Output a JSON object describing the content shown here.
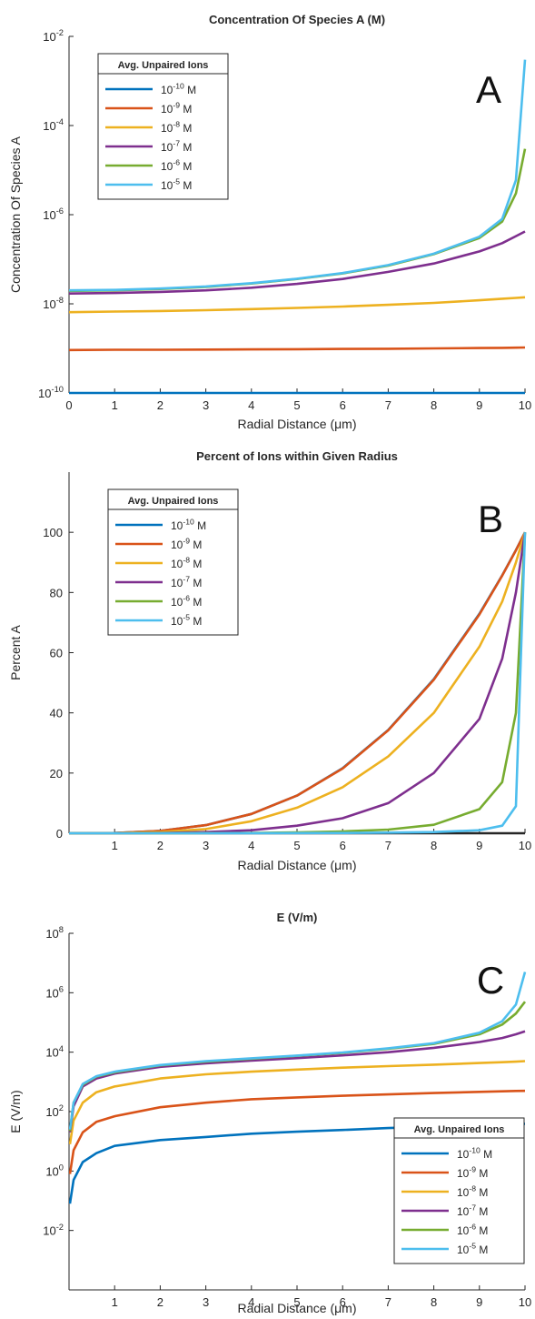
{
  "colors": {
    "series": [
      "#0072BD",
      "#D95319",
      "#EDB120",
      "#7E2F8E",
      "#77AC30",
      "#4DBEEE"
    ],
    "axis": "#262626",
    "text": "#262626"
  },
  "legend": {
    "title": "Avg. Unpaired Ions",
    "entries": [
      {
        "base": "10",
        "exp": "-10",
        "unit": " M"
      },
      {
        "base": "10",
        "exp": "-9",
        "unit": " M"
      },
      {
        "base": "10",
        "exp": "-8",
        "unit": " M"
      },
      {
        "base": "10",
        "exp": "-7",
        "unit": " M"
      },
      {
        "base": "10",
        "exp": "-6",
        "unit": " M"
      },
      {
        "base": "10",
        "exp": "-5",
        "unit": " M"
      }
    ]
  },
  "chart_data": [
    {
      "type": "line",
      "panel_letter": "A",
      "title": "Concentration Of Species A (M)",
      "xlabel": "Radial Distance (μm)",
      "ylabel": "Concentration Of Species A",
      "xlim": [
        0,
        10
      ],
      "ylim": [
        1e-10,
        0.01
      ],
      "yscale": "log",
      "grid": false,
      "legend_position": "top-left",
      "xticks": [
        "0",
        "1",
        "2",
        "3",
        "4",
        "5",
        "6",
        "7",
        "8",
        "9",
        "10"
      ],
      "yticks": [
        {
          "base": "10",
          "exp": "-2"
        },
        {
          "base": "10",
          "exp": "-4"
        },
        {
          "base": "10",
          "exp": "-6"
        },
        {
          "base": "10",
          "exp": "-8"
        },
        {
          "base": "10",
          "exp": "-10"
        }
      ],
      "x": [
        0,
        1,
        2,
        3,
        4,
        5,
        6,
        7,
        8,
        9,
        9.5,
        9.8,
        10
      ],
      "series": [
        {
          "values": [
            1e-10,
            1e-10,
            1e-10,
            1e-10,
            1e-10,
            1e-10,
            1e-10,
            1e-10,
            1e-10,
            1e-10,
            1e-10,
            1e-10,
            1e-10
          ]
        },
        {
          "values": [
            9.2e-10,
            9.3e-10,
            9.3e-10,
            9.4e-10,
            9.5e-10,
            9.6e-10,
            9.7e-10,
            9.8e-10,
            1e-09,
            1.02e-09,
            1.03e-09,
            1.04e-09,
            1.05e-09
          ]
        },
        {
          "values": [
            6.5e-09,
            6.7e-09,
            6.9e-09,
            7.2e-09,
            7.6e-09,
            8.1e-09,
            8.7e-09,
            9.5e-09,
            1.05e-08,
            1.2e-08,
            1.3e-08,
            1.36e-08,
            1.4e-08
          ]
        },
        {
          "values": [
            1.7e-08,
            1.75e-08,
            1.85e-08,
            2e-08,
            2.3e-08,
            2.8e-08,
            3.6e-08,
            5.2e-08,
            8e-08,
            1.5e-07,
            2.3e-07,
            3.3e-07,
            4.2e-07
          ]
        },
        {
          "values": [
            1.95e-08,
            2e-08,
            2.15e-08,
            2.4e-08,
            2.85e-08,
            3.6e-08,
            4.8e-08,
            7.2e-08,
            1.3e-07,
            3e-07,
            7e-07,
            3e-06,
            3e-05
          ]
        },
        {
          "values": [
            2e-08,
            2.05e-08,
            2.2e-08,
            2.45e-08,
            2.9e-08,
            3.65e-08,
            4.9e-08,
            7.4e-08,
            1.33e-07,
            3.2e-07,
            8e-07,
            6e-06,
            0.003
          ]
        }
      ]
    },
    {
      "type": "line",
      "panel_letter": "B",
      "title": "Percent of Ions within Given Radius",
      "xlabel": "Radial Distance (μm)",
      "ylabel": "Percent A",
      "xlim": [
        0,
        10
      ],
      "ylim": [
        0,
        120
      ],
      "yscale": "linear",
      "grid": false,
      "legend_position": "top-left",
      "xticks": [
        "1",
        "2",
        "3",
        "4",
        "5",
        "6",
        "7",
        "8",
        "9",
        "10"
      ],
      "yticks": [
        "100",
        "80",
        "60",
        "40",
        "20",
        "0"
      ],
      "x": [
        0,
        1,
        2,
        3,
        4,
        5,
        6,
        7,
        8,
        9,
        9.5,
        9.8,
        10
      ],
      "series": [
        {
          "values": [
            0,
            0.1,
            0.8,
            2.7,
            6.4,
            12.5,
            21.6,
            34.3,
            51.2,
            72.9,
            85.7,
            94.1,
            100
          ]
        },
        {
          "values": [
            0,
            0.1,
            0.8,
            2.7,
            6.4,
            12.5,
            21.5,
            34.2,
            51.0,
            72.7,
            85.6,
            94.0,
            100
          ]
        },
        {
          "values": [
            0,
            0.05,
            0.4,
            1.4,
            4.0,
            8.5,
            15.3,
            25.5,
            40.0,
            62.0,
            77.0,
            90.0,
            100
          ]
        },
        {
          "values": [
            0,
            0.02,
            0.1,
            0.4,
            1.0,
            2.5,
            5.0,
            10.0,
            20.0,
            38.0,
            58.0,
            80.0,
            100
          ]
        },
        {
          "values": [
            0,
            0,
            0.02,
            0.05,
            0.1,
            0.3,
            0.6,
            1.2,
            2.8,
            8.0,
            17.0,
            40.0,
            100
          ]
        },
        {
          "values": [
            0,
            0,
            0,
            0.01,
            0.02,
            0.05,
            0.1,
            0.2,
            0.4,
            1.0,
            2.5,
            9.0,
            100
          ]
        }
      ]
    },
    {
      "type": "line",
      "panel_letter": "C",
      "title": "E (V/m)",
      "xlabel": "Radial Distance (μm)",
      "ylabel": "E (V/m)",
      "xlim": [
        0,
        10
      ],
      "ylim": [
        0.0001,
        100000000.0
      ],
      "yscale": "log",
      "grid": false,
      "legend_position": "bottom-right",
      "xticks": [
        "1",
        "2",
        "3",
        "4",
        "5",
        "6",
        "7",
        "8",
        "9",
        "10"
      ],
      "yticks": [
        {
          "base": "10",
          "exp": "8"
        },
        {
          "base": "10",
          "exp": "6"
        },
        {
          "base": "10",
          "exp": "4"
        },
        {
          "base": "10",
          "exp": "2"
        },
        {
          "base": "10",
          "exp": "0"
        },
        {
          "base": "10",
          "exp": "-2"
        }
      ],
      "x": [
        0.02,
        0.1,
        0.3,
        0.6,
        1,
        2,
        3,
        4,
        5,
        6,
        7,
        8,
        9,
        9.5,
        9.8,
        10
      ],
      "series": [
        {
          "values": [
            0.08,
            0.5,
            2,
            4,
            7,
            11,
            14,
            18,
            21,
            24,
            28,
            31,
            35,
            37,
            38,
            39
          ]
        },
        {
          "values": [
            0.8,
            5,
            20,
            45,
            70,
            140,
            200,
            260,
            300,
            340,
            380,
            420,
            460,
            480,
            495,
            500
          ]
        },
        {
          "values": [
            8,
            50,
            200,
            450,
            700,
            1300,
            1800,
            2200,
            2600,
            3000,
            3400,
            3800,
            4300,
            4600,
            4800,
            5000
          ]
        },
        {
          "values": [
            20,
            150,
            700,
            1300,
            1900,
            3200,
            4200,
            5200,
            6300,
            7800,
            10000,
            14000,
            22000,
            30000,
            40000,
            50000
          ]
        },
        {
          "values": [
            22,
            200,
            800,
            1500,
            2100,
            3600,
            4800,
            6000,
            7500,
            9500,
            13000,
            19000,
            40000,
            85000,
            200000,
            500000
          ]
        },
        {
          "values": [
            25,
            200,
            850,
            1550,
            2200,
            3700,
            5000,
            6200,
            7700,
            9800,
            13500,
            20000,
            45000,
            110000,
            400000,
            5000000
          ]
        }
      ]
    }
  ]
}
